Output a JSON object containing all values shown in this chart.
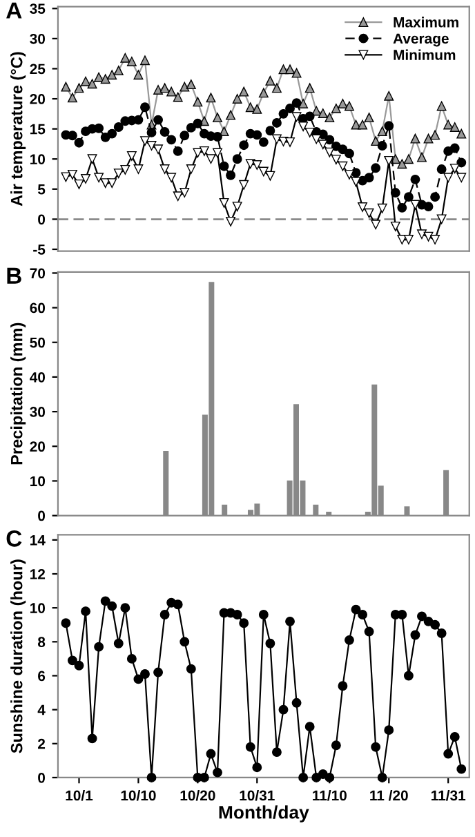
{
  "chart_data": [
    {
      "type": "line",
      "title": "A",
      "ylabel": "Air temperature (°C)",
      "categories": [
        null,
        null,
        null,
        null,
        null,
        null,
        null,
        null,
        null,
        null,
        null,
        null,
        null,
        null,
        null,
        null,
        null,
        null,
        null,
        null,
        null,
        null,
        null,
        null,
        null,
        null,
        null,
        null,
        null,
        null,
        null,
        null,
        null,
        null,
        null,
        null,
        null,
        null,
        null,
        null,
        null,
        null,
        null,
        null,
        null,
        null,
        null,
        null,
        null,
        null,
        null,
        null,
        null,
        null,
        null,
        null,
        null,
        null,
        null,
        null,
        null
      ],
      "ylim": [
        -5.3,
        35.3
      ],
      "yticks": [
        -5,
        0,
        5,
        10,
        15,
        20,
        25,
        30,
        35
      ],
      "tick_labels": "y",
      "grid": false,
      "legend": "top right",
      "series": [
        {
          "name": "Maximum",
          "color": "#999999",
          "marker": "triangle",
          "line_style": "solid",
          "values": [
            22.0,
            20.2,
            21.8,
            22.9,
            22.5,
            23.6,
            23.3,
            24.0,
            24.7,
            26.8,
            26.2,
            24.0,
            26.4,
            15.7,
            21.5,
            21.8,
            21.2,
            20.3,
            22.0,
            22.4,
            19.5,
            16.3,
            20.2,
            16.9,
            14.6,
            17.3,
            20.0,
            21.2,
            18.6,
            18.3,
            21.0,
            23.0,
            21.8,
            24.9,
            24.9,
            24.3,
            19.2,
            21.8,
            18.0,
            17.6,
            16.9,
            18.4,
            19.2,
            18.8,
            15.7,
            15.7,
            16.9,
            13.0,
            14.6,
            20.5,
            10.0,
            9.2,
            10.0,
            13.4,
            10.3,
            13.4,
            14.0,
            18.8,
            15.7,
            15.3,
            14.2
          ]
        },
        {
          "name": "Average",
          "color": "#000000",
          "marker": "circle",
          "line_style": "dashed",
          "values": [
            14.0,
            13.9,
            12.7,
            14.6,
            15.0,
            15.1,
            13.6,
            14.2,
            15.3,
            16.3,
            16.4,
            16.5,
            18.6,
            14.4,
            16.5,
            14.5,
            13.2,
            11.3,
            13.9,
            15.2,
            15.9,
            14.2,
            13.8,
            13.7,
            8.8,
            7.3,
            10.0,
            12.3,
            14.2,
            14.0,
            12.8,
            14.7,
            16.0,
            17.5,
            18.4,
            19.3,
            16.7,
            17.1,
            14.5,
            14.1,
            13.2,
            12.1,
            11.6,
            10.9,
            7.7,
            6.4,
            6.9,
            8.5,
            12.2,
            15.5,
            4.4,
            1.9,
            3.7,
            6.6,
            2.4,
            2.1,
            3.7,
            8.3,
            11.3,
            11.8,
            9.4
          ]
        },
        {
          "name": "Minimum",
          "color": "#000000",
          "marker": "triangle_down",
          "line_style": "solid",
          "values": [
            7.0,
            7.4,
            5.8,
            6.7,
            10.0,
            6.9,
            6.0,
            6.0,
            7.6,
            8.2,
            10.5,
            8.3,
            13.0,
            12.2,
            11.6,
            8.3,
            6.9,
            3.8,
            4.4,
            8.3,
            11.0,
            11.3,
            10.0,
            11.0,
            2.7,
            -0.4,
            2.1,
            5.7,
            9.2,
            9.0,
            7.9,
            7.2,
            13.3,
            12.9,
            12.8,
            17.0,
            15.4,
            14.4,
            13.3,
            12.4,
            11.1,
            9.9,
            8.8,
            7.4,
            6.2,
            2.0,
            1.0,
            -0.9,
            1.8,
            9.7,
            -1.2,
            -3.4,
            -3.4,
            2.4,
            -2.5,
            -2.9,
            -3.4,
            0.0,
            6.9,
            8.4,
            6.9
          ]
        }
      ],
      "ref_lines": [
        {
          "axis": "y",
          "value": 0,
          "color": "#808080",
          "line_style": "dashed"
        }
      ]
    },
    {
      "type": "bar",
      "title": "B",
      "ylabel": "Precipitation (mm)",
      "categories": [
        null,
        null,
        null,
        null,
        null,
        null,
        null,
        null,
        null,
        null,
        null,
        null,
        null,
        null,
        null,
        null,
        null,
        null,
        null,
        null,
        null,
        null,
        null,
        null,
        null,
        null,
        null,
        null,
        null,
        null,
        null,
        null,
        null,
        null,
        null,
        null,
        null,
        null,
        null,
        null,
        null,
        null,
        null,
        null,
        null,
        null,
        null,
        null,
        null,
        null,
        null,
        null,
        null,
        null,
        null,
        null,
        null,
        null,
        null,
        null,
        null
      ],
      "values": [
        0,
        0,
        0,
        0,
        0,
        0,
        0,
        0,
        0,
        0,
        0,
        0,
        0,
        0,
        0,
        18.5,
        0,
        0,
        0,
        0,
        0,
        29,
        67.3,
        0,
        3,
        0,
        0,
        0,
        1.5,
        3.3,
        0,
        0,
        0,
        0,
        10,
        32,
        10,
        0,
        3,
        0,
        1,
        0,
        0,
        0,
        0,
        0,
        1,
        37.7,
        8.5,
        0,
        0,
        0,
        2.5,
        0,
        0,
        0,
        0,
        0,
        13,
        0,
        0
      ],
      "color": "#888888",
      "ylim": [
        0,
        70.3
      ],
      "yticks": [
        0,
        10,
        20,
        30,
        40,
        50,
        60,
        70
      ],
      "tick_labels": "y",
      "grid": false
    },
    {
      "type": "line",
      "title": "C",
      "xlabel": "Month/day",
      "ylabel": "Sunshine duration (hour)",
      "categories": [
        null,
        null,
        "10/1",
        null,
        null,
        null,
        null,
        null,
        null,
        null,
        null,
        "10/10",
        null,
        null,
        null,
        null,
        null,
        null,
        null,
        null,
        "10/20",
        null,
        null,
        null,
        null,
        null,
        null,
        null,
        null,
        "10/31",
        null,
        null,
        null,
        null,
        null,
        null,
        null,
        null,
        null,
        null,
        "11/10",
        null,
        null,
        null,
        null,
        null,
        null,
        null,
        null,
        "11 /20",
        null,
        null,
        null,
        null,
        null,
        null,
        null,
        null,
        "11/31",
        null,
        null
      ],
      "ylim": [
        0,
        14.3
      ],
      "yticks": [
        0,
        2,
        4,
        6,
        8,
        10,
        12,
        14
      ],
      "grid": false,
      "marker": "circle",
      "line_style": "solid",
      "series": [
        {
          "color": "#000000",
          "values": [
            9.1,
            6.9,
            6.6,
            9.8,
            2.3,
            7.7,
            10.4,
            10.1,
            7.9,
            10.0,
            7.0,
            5.8,
            6.1,
            0,
            6.2,
            9.6,
            10.3,
            10.2,
            8.0,
            6.4,
            0,
            0,
            1.4,
            0.3,
            9.7,
            9.7,
            9.6,
            9.1,
            1.8,
            0.6,
            9.6,
            7.9,
            1.5,
            4.0,
            9.2,
            4.4,
            0,
            3.0,
            0,
            0.2,
            0,
            1.9,
            5.4,
            8.1,
            9.9,
            9.6,
            8.6,
            1.8,
            0,
            2.8,
            9.6,
            9.6,
            6.0,
            8.4,
            9.5,
            9.2,
            9.0,
            8.5,
            1.4,
            2.4,
            0.5
          ]
        }
      ]
    }
  ]
}
